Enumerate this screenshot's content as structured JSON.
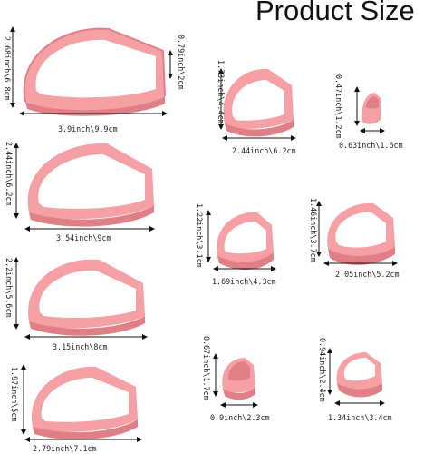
{
  "title": "Product Size",
  "cutters": [
    {
      "width": "3.9inch\\9.9cm",
      "height": "2.68inch\\6.8cm",
      "depth": "0.79inch\\2cm"
    },
    {
      "width": "3.54inch\\9cm",
      "height": "2.44inch\\6.2cm"
    },
    {
      "width": "3.15inch\\8cm",
      "height": "2.2inch\\5.6cm"
    },
    {
      "width": "2.79inch\\7.1cm",
      "height": "1.97inch\\5cm"
    },
    {
      "width": "2.44inch\\6.2cm",
      "height": "1.73inch\\4.4cm"
    },
    {
      "width": "0.63inch\\1.6cm",
      "height": "0.47inch\\1.2cm"
    },
    {
      "width": "1.69inch\\4.3cm",
      "height": "1.22inch\\3.1cm"
    },
    {
      "width": "2.05inch\\5.2cm",
      "height": "1.46inch\\3.7cm"
    },
    {
      "width": "0.9inch\\2.3cm",
      "height": "0.67inch\\1.7cm"
    },
    {
      "width": "1.34inch\\3.4cm",
      "height": "0.94inch\\2.4cm"
    }
  ],
  "colors": {
    "cutter": "#f4a0a4",
    "cutter_dark": "#e07f86",
    "cutter_light": "#f8c4c6"
  }
}
